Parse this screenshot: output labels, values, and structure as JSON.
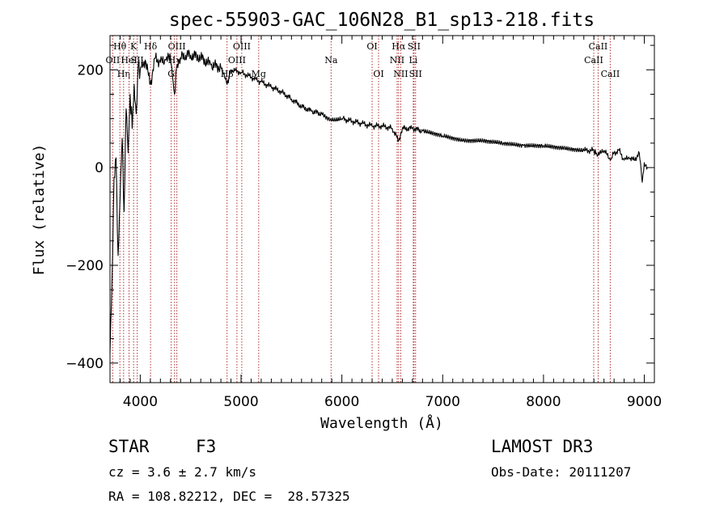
{
  "chart_data": {
    "type": "line",
    "title": "spec-55903-GAC_106N28_B1_sp13-218.fits",
    "xlabel": "Wavelength (Å)",
    "ylabel": "Flux (relative)",
    "xlim": [
      3700,
      9100
    ],
    "ylim": [
      -440,
      270
    ],
    "xticks": [
      4000,
      5000,
      6000,
      7000,
      8000,
      9000
    ],
    "xtick_labels": [
      "4000",
      "5000",
      "6000",
      "7000",
      "8000",
      "9000"
    ],
    "yticks": [
      -400,
      -200,
      0,
      200
    ],
    "ytick_labels": [
      "−400",
      "−200",
      "0",
      "200"
    ],
    "series": [
      {
        "name": "flux",
        "x": [
          3700,
          3720,
          3740,
          3760,
          3780,
          3800,
          3820,
          3840,
          3860,
          3880,
          3900,
          3920,
          3940,
          3960,
          3980,
          4000,
          4050,
          4100,
          4150,
          4200,
          4250,
          4300,
          4340,
          4360,
          4400,
          4450,
          4500,
          4600,
          4700,
          4800,
          4861,
          4900,
          5000,
          5100,
          5200,
          5300,
          5400,
          5500,
          5600,
          5700,
          5800,
          5890,
          6000,
          6100,
          6200,
          6300,
          6400,
          6500,
          6563,
          6600,
          6700,
          6800,
          7000,
          7200,
          7400,
          7600,
          7800,
          8000,
          8200,
          8400,
          8500,
          8540,
          8600,
          8662,
          8700,
          8750,
          8800,
          8850,
          8900,
          8950,
          8980,
          9000,
          9030
        ],
        "values": [
          -380,
          -230,
          -20,
          20,
          -180,
          -60,
          60,
          -90,
          120,
          30,
          150,
          80,
          170,
          110,
          210,
          200,
          220,
          170,
          225,
          215,
          220,
          225,
          150,
          205,
          225,
          230,
          230,
          225,
          210,
          205,
          170,
          200,
          195,
          185,
          175,
          165,
          155,
          140,
          125,
          115,
          110,
          100,
          100,
          95,
          90,
          85,
          85,
          80,
          55,
          80,
          80,
          75,
          65,
          55,
          55,
          50,
          45,
          45,
          40,
          35,
          35,
          25,
          35,
          15,
          30,
          35,
          15,
          20,
          15,
          30,
          -30,
          10,
          0
        ]
      }
    ],
    "lines": [
      {
        "label": "Hθ",
        "x": 3798,
        "row": 1
      },
      {
        "label": "OII",
        "x": 3727,
        "row": 2
      },
      {
        "label": "Hη",
        "x": 3835,
        "row": 3
      },
      {
        "label": "HeI",
        "x": 3889,
        "row": 2
      },
      {
        "label": "K",
        "x": 3934,
        "row": 1
      },
      {
        "label": "SII",
        "x": 3970,
        "row": 2
      },
      {
        "label": "Hδ",
        "x": 4102,
        "row": 1
      },
      {
        "label": "OIII",
        "x": 4363,
        "row": 1
      },
      {
        "label": "Hγ",
        "x": 4340,
        "row": 2
      },
      {
        "label": "G",
        "x": 4307,
        "row": 3
      },
      {
        "label": "OIII",
        "x": 5007,
        "row": 1
      },
      {
        "label": "OIII",
        "x": 4959,
        "row": 2
      },
      {
        "label": "Hβ",
        "x": 4861,
        "row": 3
      },
      {
        "label": "Mg",
        "x": 5175,
        "row": 3
      },
      {
        "label": "Na",
        "x": 5893,
        "row": 2
      },
      {
        "label": "OI",
        "x": 6300,
        "row": 1
      },
      {
        "label": "OI",
        "x": 6364,
        "row": 3
      },
      {
        "label": "Hα",
        "x": 6563,
        "row": 1
      },
      {
        "label": "NII",
        "x": 6548,
        "row": 2
      },
      {
        "label": "NII",
        "x": 6584,
        "row": 3
      },
      {
        "label": "SII",
        "x": 6716,
        "row": 1
      },
      {
        "label": "Li",
        "x": 6708,
        "row": 2
      },
      {
        "label": "SII",
        "x": 6731,
        "row": 3
      },
      {
        "label": "CaII",
        "x": 8542,
        "row": 1
      },
      {
        "label": "CaII",
        "x": 8498,
        "row": 2
      },
      {
        "label": "CaII",
        "x": 8662,
        "row": 3
      }
    ]
  },
  "info": {
    "object_class": "STAR",
    "subclass": "F3",
    "survey": "LAMOST DR3",
    "cz": "cz = 3.6 ± 2.7 km/s",
    "obs_date": "Obs-Date: 20111207",
    "coords": "RA = 108.82212, DEC =  28.57325"
  }
}
